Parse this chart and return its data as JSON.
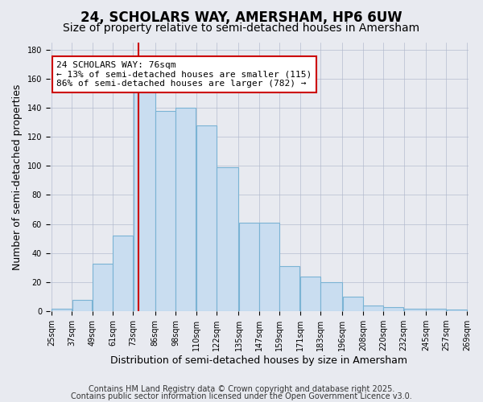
{
  "title1": "24, SCHOLARS WAY, AMERSHAM, HP6 6UW",
  "title2": "Size of property relative to semi-detached houses in Amersham",
  "xlabel": "Distribution of semi-detached houses by size in Amersham",
  "ylabel": "Number of semi-detached properties",
  "bin_edges": [
    25,
    37,
    49,
    61,
    73,
    86,
    98,
    110,
    122,
    135,
    147,
    159,
    171,
    183,
    196,
    208,
    220,
    232,
    245,
    257,
    269
  ],
  "bar_labels": [
    "25sqm",
    "37sqm",
    "49sqm",
    "61sqm",
    "73sqm",
    "86sqm",
    "98sqm",
    "110sqm",
    "122sqm",
    "135sqm",
    "147sqm",
    "159sqm",
    "171sqm",
    "183sqm",
    "196sqm",
    "208sqm",
    "220sqm",
    "232sqm",
    "245sqm",
    "257sqm",
    "269sqm"
  ],
  "bar_values": [
    2,
    8,
    33,
    52,
    152,
    138,
    140,
    128,
    99,
    61,
    61,
    31,
    24,
    20,
    10,
    4,
    3,
    2,
    2,
    1
  ],
  "bar_color": "#c9ddf0",
  "bar_edgecolor": "#7ab3d4",
  "annotation_text": "24 SCHOLARS WAY: 76sqm\n← 13% of semi-detached houses are smaller (115)\n86% of semi-detached houses are larger (782) →",
  "annotation_box_color": "#ffffff",
  "annotation_box_edgecolor": "#cc0000",
  "vline_color": "#cc0000",
  "vline_x": 76,
  "ylim": [
    0,
    185
  ],
  "yticks": [
    0,
    20,
    40,
    60,
    80,
    100,
    120,
    140,
    160,
    180
  ],
  "grid_color": "#b0b8cc",
  "bg_color": "#e8eaf0",
  "footer1": "Contains HM Land Registry data © Crown copyright and database right 2025.",
  "footer2": "Contains public sector information licensed under the Open Government Licence v3.0.",
  "title1_fontsize": 12,
  "title2_fontsize": 10,
  "xlabel_fontsize": 9,
  "ylabel_fontsize": 9,
  "tick_fontsize": 7,
  "annotation_fontsize": 8,
  "footer_fontsize": 7
}
